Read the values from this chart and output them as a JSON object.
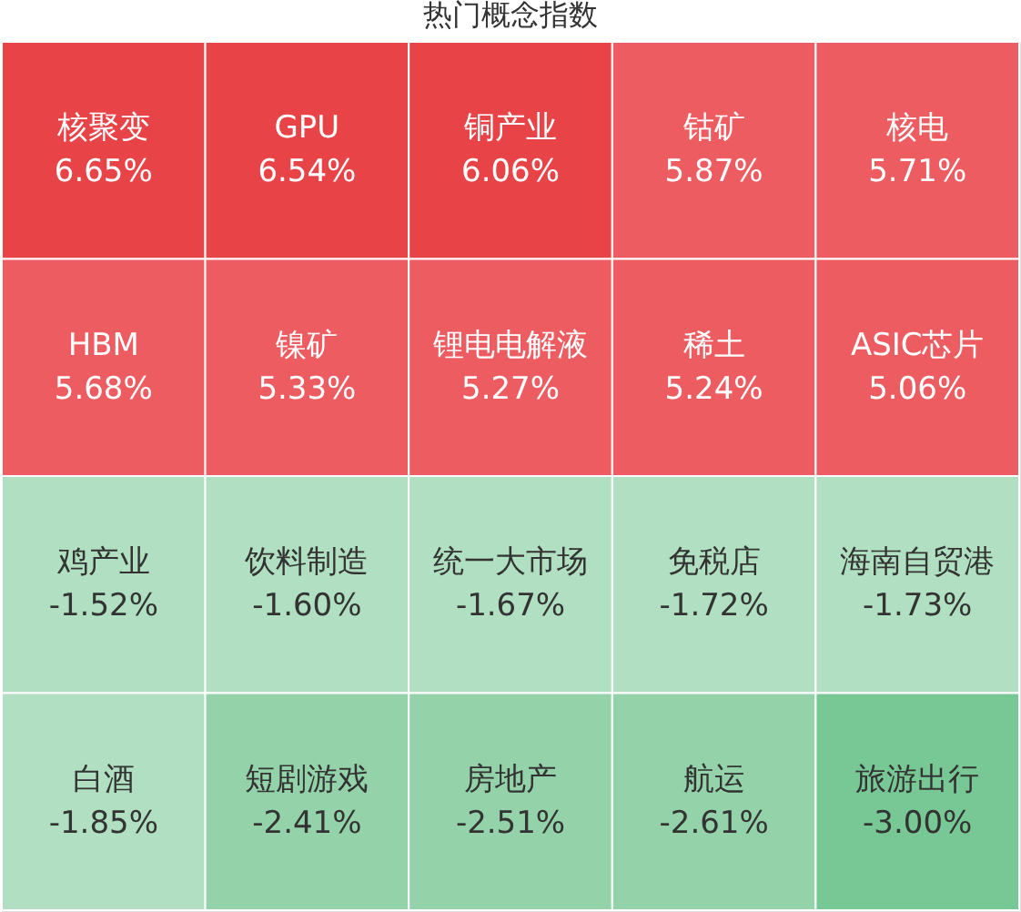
{
  "chart_data": {
    "type": "heatmap",
    "title": "热门概念指数",
    "categories": [
      null,
      null,
      null,
      null,
      null
    ],
    "y_categories": [
      null,
      null,
      null,
      null
    ],
    "cells": [
      [
        6.65,
        6.54,
        6.06,
        5.87,
        5.71
      ],
      [
        5.68,
        5.33,
        5.27,
        5.24,
        5.06
      ],
      [
        -1.52,
        -1.6,
        -1.67,
        -1.72,
        -1.73
      ],
      [
        -1.85,
        -2.41,
        -2.51,
        -2.61,
        -3.0
      ]
    ],
    "cell_labels": [
      [
        "6.65%",
        "6.54%",
        "6.06%",
        "5.87%",
        "5.71%"
      ],
      [
        "5.68%",
        "5.33%",
        "5.27%",
        "5.24%",
        "5.06%"
      ],
      [
        "-1.52%",
        "-1.60%",
        "-1.67%",
        "-1.72%",
        "-1.73%"
      ],
      [
        "-1.85%",
        "-2.41%",
        "-2.51%",
        "-2.61%",
        "-3.00%"
      ]
    ],
    "annotations": [
      "核聚变",
      "GPU",
      "铜产业",
      "钴矿",
      "核电",
      "HBM",
      "镍矿",
      "锂电电解液",
      "稀土",
      "ASIC芯片",
      "鸡产业",
      "饮料制造",
      "统一大市场",
      "免税店",
      "海南自贸港",
      "白酒",
      "短剧游戏",
      "房地产",
      "航运",
      "旅游出行"
    ],
    "colors": [
      [
        "#e84448",
        "#e84448",
        "#e84448",
        "#ec5c60",
        "#ec5c60"
      ],
      [
        "#ec5c60",
        "#ec5c60",
        "#ec5c60",
        "#ec5c60",
        "#ec5c60"
      ],
      [
        "#b1dfc1",
        "#b1dfc1",
        "#b1dfc1",
        "#b1dfc1",
        "#b1dfc1"
      ],
      [
        "#b1dfc1",
        "#94d3aa",
        "#94d3aa",
        "#94d3aa",
        "#78c896"
      ]
    ]
  }
}
